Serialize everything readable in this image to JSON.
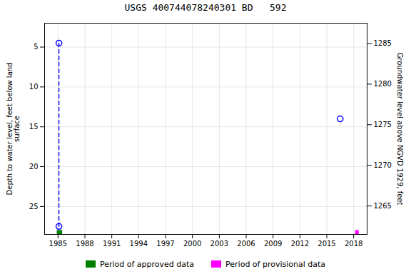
{
  "chart_data": {
    "type": "scatter",
    "title": "USGS 400744078240301 BD   592",
    "ylabel": "Depth to water level, feet below land\nsurface",
    "y2label": "Groundwater level above NGVD 1929, feet",
    "xlim": [
      1983.5,
      2019.5
    ],
    "xticks": [
      1985,
      1988,
      1991,
      1994,
      1997,
      2000,
      2003,
      2006,
      2009,
      2012,
      2015,
      2018
    ],
    "ylim": [
      28.5,
      2.0
    ],
    "yticks": [
      5,
      10,
      15,
      20,
      25
    ],
    "y2lim": [
      1261.5,
      1287.5
    ],
    "y2ticks": [
      1265,
      1270,
      1275,
      1280,
      1285
    ],
    "grid": true,
    "legend": "bottom",
    "series": [
      {
        "type": "line",
        "line_style": "dashed",
        "color": "#0000FF",
        "x": [
          1985.1,
          1985.1
        ],
        "values": [
          4.5,
          27.5
        ]
      },
      {
        "type": "scatter",
        "marker": "circle",
        "color": "#0000FF",
        "x": [
          1985.1,
          1985.1,
          2016.5
        ],
        "values": [
          4.5,
          27.5,
          14.0
        ]
      }
    ],
    "periods": [
      {
        "name": "Period of approved data",
        "color": "#008000",
        "start": 1984.9,
        "width": 0.6
      },
      {
        "name": "Period of provisional data",
        "color": "#FF00FF",
        "start": 2018.2,
        "width": 0.4
      }
    ],
    "bar_y": 28.0,
    "bar_height": 0.5
  }
}
